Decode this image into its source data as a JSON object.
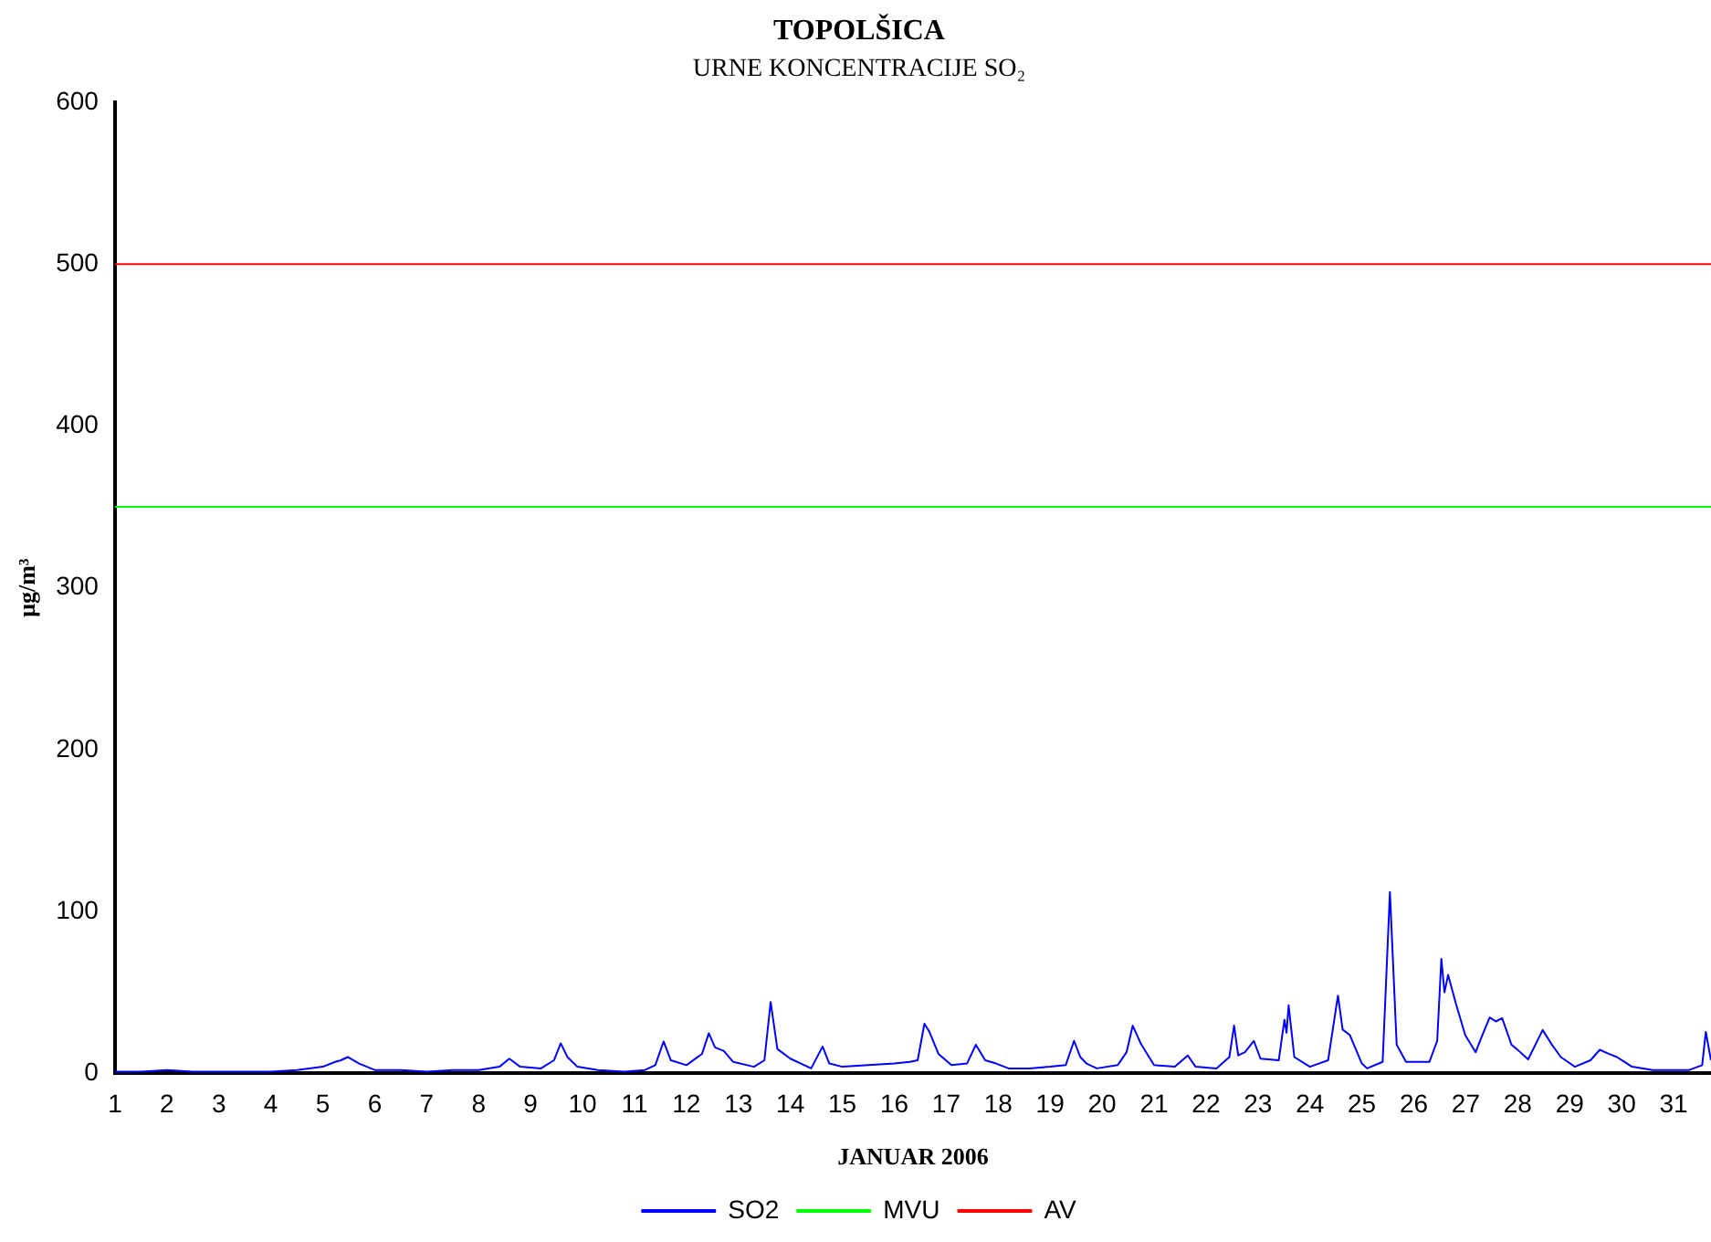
{
  "chart_data": {
    "type": "line",
    "title": "TOPOLŠICA",
    "subtitle": "URNE KONCENTRACIJE SO₂",
    "xlabel": "JANUAR 2006",
    "ylabel": "μg/m³",
    "xlim": [
      1,
      31.72
    ],
    "xticks": [
      1,
      2,
      3,
      4,
      5,
      6,
      7,
      8,
      9,
      10,
      11,
      12,
      13,
      14,
      15,
      16,
      17,
      18,
      19,
      20,
      21,
      22,
      23,
      24,
      25,
      26,
      27,
      28,
      29,
      30,
      31
    ],
    "ylim": [
      0,
      600
    ],
    "yticks": [
      0,
      100,
      200,
      300,
      400,
      500,
      600
    ],
    "grid": false,
    "legend": "bottom",
    "marker": "none",
    "line_style": "solid",
    "series": [
      {
        "name": "SO2",
        "color": "#0000ff",
        "x": [
          1,
          1.5,
          2,
          2.5,
          3,
          3.5,
          4,
          4.5,
          5,
          5.24,
          5.35,
          5.48,
          5.7,
          6,
          6.5,
          7,
          7.5,
          8,
          8.4,
          8.59,
          8.8,
          9.2,
          9.45,
          9.58,
          9.71,
          9.9,
          10.3,
          10.8,
          11.2,
          11.4,
          11.56,
          11.7,
          12,
          12.3,
          12.43,
          12.55,
          12.72,
          12.9,
          13.3,
          13.5,
          13.62,
          13.75,
          14,
          14.4,
          14.62,
          14.75,
          15,
          15.5,
          16,
          16.3,
          16.45,
          16.58,
          16.67,
          16.85,
          17.1,
          17.4,
          17.57,
          17.75,
          17.96,
          18.2,
          18.6,
          19,
          19.3,
          19.46,
          19.58,
          19.7,
          19.9,
          20.3,
          20.47,
          20.59,
          20.75,
          21,
          21.4,
          21.65,
          21.8,
          22.2,
          22.45,
          22.54,
          22.62,
          22.75,
          22.92,
          23.05,
          23.4,
          23.51,
          23.55,
          23.59,
          23.7,
          24,
          24.35,
          24.54,
          24.63,
          24.77,
          25,
          25.1,
          25.4,
          25.54,
          25.67,
          25.85,
          26.3,
          26.45,
          26.53,
          26.59,
          26.66,
          26.81,
          26.99,
          27.19,
          27.3,
          27.46,
          27.58,
          27.7,
          27.88,
          27.98,
          28.2,
          28.48,
          28.65,
          28.83,
          29.1,
          29.4,
          29.58,
          29.75,
          29.91,
          30.2,
          30.6,
          31,
          31.3,
          31.55,
          31.62,
          31.72
        ],
        "values": [
          1,
          1,
          2,
          1,
          1,
          1,
          1,
          2,
          4,
          7,
          8,
          10,
          6,
          2,
          2,
          1,
          2,
          2,
          4,
          9,
          4,
          3,
          8,
          18.5,
          10,
          4,
          2,
          1,
          2,
          5,
          19.6,
          8,
          5,
          12,
          24.7,
          16,
          13.7,
          7,
          4,
          8,
          44,
          15,
          9,
          3,
          16.5,
          6,
          4,
          5,
          6,
          7,
          8,
          30.6,
          26,
          12,
          5,
          6,
          17.6,
          8,
          6,
          3,
          3,
          4,
          5,
          20,
          10,
          6,
          3,
          5,
          13,
          29.4,
          18,
          5,
          4,
          11,
          4,
          3,
          10,
          29.4,
          11,
          13,
          20,
          9,
          8,
          33,
          25,
          42,
          10,
          4,
          8,
          48,
          27,
          23.5,
          6,
          3,
          7,
          112,
          17.6,
          7,
          7,
          20,
          70.6,
          50,
          60.8,
          43,
          23.5,
          13,
          22,
          34.5,
          32,
          34,
          17.6,
          15,
          8.6,
          26.7,
          18,
          10,
          4,
          8,
          14.5,
          12,
          10,
          4,
          2,
          2,
          2,
          5,
          25.5,
          8
        ]
      },
      {
        "name": "MVU",
        "color": "#00ff00",
        "x": [
          1,
          31.72
        ],
        "values": [
          350,
          350
        ]
      },
      {
        "name": "AV",
        "color": "#ff0000",
        "x": [
          1,
          31.72
        ],
        "values": [
          500,
          500
        ]
      }
    ]
  }
}
